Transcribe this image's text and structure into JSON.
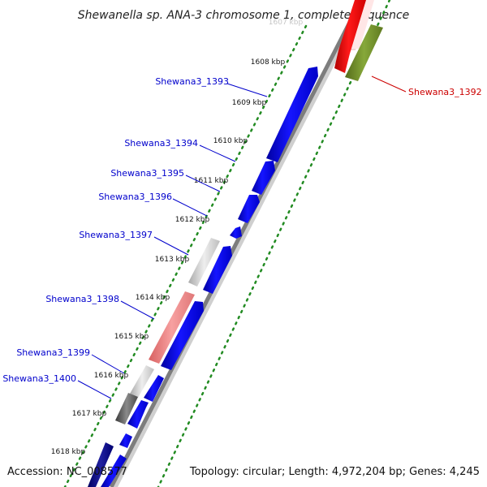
{
  "title": "Shewanella sp. ANA-3 chromosome 1, complete sequence",
  "footer": {
    "accession": "Accession: NC_008577",
    "topology": "Topology: circular; Length: 4,972,204 bp; Genes: 4,245"
  },
  "ruler": {
    "unit": "kbp",
    "ticks": [
      "1607 kbp",
      "1608 kbp",
      "1609 kbp",
      "1610 kbp",
      "1611 kbp",
      "1612 kbp",
      "1613 kbp",
      "1614 kbp",
      "1615 kbp",
      "1616 kbp",
      "1617 kbp",
      "1618 kbp"
    ]
  },
  "colors": {
    "forward_cds": "#0000ee",
    "reverse_cds": "#ee0000",
    "reverse_other": "#6b8e23",
    "highlight": "#e26060",
    "pseudo": "#c8c8c8",
    "dark_gray": "#555555",
    "navy": "#000088",
    "backbone": "#999999",
    "gc_dots": "#228b22"
  },
  "genes": [
    {
      "label": "Shewana3_1392",
      "strand": "reverse",
      "color": "#cc0000"
    },
    {
      "label": "Shewana3_1393",
      "strand": "forward",
      "color": "#0000cc"
    },
    {
      "label": "Shewana3_1394",
      "strand": "forward",
      "color": "#0000cc"
    },
    {
      "label": "Shewana3_1395",
      "strand": "forward",
      "color": "#0000cc"
    },
    {
      "label": "Shewana3_1396",
      "strand": "forward",
      "color": "#0000cc"
    },
    {
      "label": "Shewana3_1397",
      "strand": "forward",
      "color": "#0000cc"
    },
    {
      "label": "Shewana3_1398",
      "strand": "forward",
      "color": "#0000cc"
    },
    {
      "label": "Shewana3_1399",
      "strand": "forward",
      "color": "#0000cc"
    },
    {
      "label": "Shewana3_1400",
      "strand": "forward",
      "color": "#0000cc"
    }
  ]
}
